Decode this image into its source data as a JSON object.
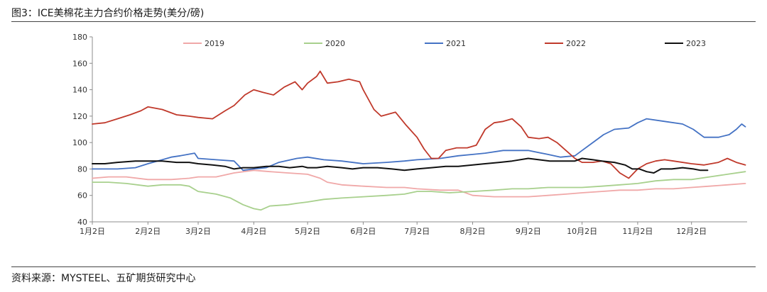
{
  "figure": {
    "title": "图3：ICE美棉花主力合约价格走势(美分/磅)",
    "source": "资料来源：MYSTEEL、五矿期货研究中心"
  },
  "chart_data": {
    "type": "line",
    "xlabel": "",
    "ylabel": "",
    "ylim": [
      40,
      180
    ],
    "yticks": [
      40,
      60,
      80,
      100,
      120,
      140,
      160,
      180
    ],
    "xlim": [
      1,
      366
    ],
    "xticks": [
      {
        "day": 1,
        "label": "1月2日"
      },
      {
        "day": 32,
        "label": "2月2日"
      },
      {
        "day": 60,
        "label": "3月2日"
      },
      {
        "day": 91,
        "label": "4月2日"
      },
      {
        "day": 121,
        "label": "5月2日"
      },
      {
        "day": 152,
        "label": "6月2日"
      },
      {
        "day": 182,
        "label": "7月2日"
      },
      {
        "day": 213,
        "label": "8月2日"
      },
      {
        "day": 244,
        "label": "9月2日"
      },
      {
        "day": 274,
        "label": "10月2日"
      },
      {
        "day": 305,
        "label": "11月2日"
      },
      {
        "day": 335,
        "label": "12月2日"
      }
    ],
    "grid": false,
    "legend_position": "top",
    "series": [
      {
        "name": "2019",
        "color": "#f0a8a8",
        "points": [
          [
            1,
            73
          ],
          [
            10,
            74
          ],
          [
            20,
            74
          ],
          [
            32,
            72
          ],
          [
            45,
            72
          ],
          [
            55,
            73
          ],
          [
            60,
            74
          ],
          [
            70,
            74
          ],
          [
            80,
            77
          ],
          [
            91,
            79
          ],
          [
            100,
            78
          ],
          [
            110,
            77
          ],
          [
            121,
            76
          ],
          [
            128,
            73
          ],
          [
            132,
            70
          ],
          [
            140,
            68
          ],
          [
            152,
            67
          ],
          [
            165,
            66
          ],
          [
            175,
            66
          ],
          [
            182,
            65
          ],
          [
            195,
            64
          ],
          [
            205,
            64
          ],
          [
            213,
            60
          ],
          [
            225,
            59
          ],
          [
            235,
            59
          ],
          [
            244,
            59
          ],
          [
            255,
            60
          ],
          [
            265,
            61
          ],
          [
            274,
            62
          ],
          [
            285,
            63
          ],
          [
            295,
            64
          ],
          [
            305,
            64
          ],
          [
            315,
            65
          ],
          [
            325,
            65
          ],
          [
            335,
            66
          ],
          [
            345,
            67
          ],
          [
            355,
            68
          ],
          [
            365,
            69
          ]
        ]
      },
      {
        "name": "2020",
        "color": "#a8d08d",
        "points": [
          [
            1,
            70
          ],
          [
            10,
            70
          ],
          [
            20,
            69
          ],
          [
            32,
            67
          ],
          [
            40,
            68
          ],
          [
            50,
            68
          ],
          [
            55,
            67
          ],
          [
            60,
            63
          ],
          [
            70,
            61
          ],
          [
            78,
            58
          ],
          [
            85,
            53
          ],
          [
            91,
            50
          ],
          [
            95,
            49
          ],
          [
            100,
            52
          ],
          [
            110,
            53
          ],
          [
            115,
            54
          ],
          [
            121,
            55
          ],
          [
            130,
            57
          ],
          [
            140,
            58
          ],
          [
            152,
            59
          ],
          [
            165,
            60
          ],
          [
            175,
            61
          ],
          [
            182,
            63
          ],
          [
            190,
            63
          ],
          [
            200,
            62
          ],
          [
            213,
            63
          ],
          [
            225,
            64
          ],
          [
            235,
            65
          ],
          [
            244,
            65
          ],
          [
            255,
            66
          ],
          [
            265,
            66
          ],
          [
            274,
            66
          ],
          [
            285,
            67
          ],
          [
            295,
            68
          ],
          [
            305,
            69
          ],
          [
            315,
            71
          ],
          [
            325,
            72
          ],
          [
            335,
            72
          ],
          [
            345,
            74
          ],
          [
            355,
            76
          ],
          [
            365,
            78
          ]
        ]
      },
      {
        "name": "2021",
        "color": "#4472c4",
        "points": [
          [
            1,
            80
          ],
          [
            8,
            80
          ],
          [
            15,
            80
          ],
          [
            25,
            81
          ],
          [
            32,
            84
          ],
          [
            40,
            87
          ],
          [
            45,
            89
          ],
          [
            50,
            90
          ],
          [
            58,
            92
          ],
          [
            60,
            88
          ],
          [
            70,
            87
          ],
          [
            80,
            86
          ],
          [
            85,
            79
          ],
          [
            91,
            80
          ],
          [
            98,
            81
          ],
          [
            105,
            85
          ],
          [
            115,
            88
          ],
          [
            121,
            89
          ],
          [
            130,
            87
          ],
          [
            140,
            86
          ],
          [
            152,
            84
          ],
          [
            165,
            85
          ],
          [
            175,
            86
          ],
          [
            182,
            87
          ],
          [
            195,
            88
          ],
          [
            205,
            90
          ],
          [
            213,
            91
          ],
          [
            220,
            92
          ],
          [
            230,
            94
          ],
          [
            244,
            94
          ],
          [
            255,
            91
          ],
          [
            262,
            89
          ],
          [
            270,
            90
          ],
          [
            274,
            94
          ],
          [
            280,
            100
          ],
          [
            286,
            106
          ],
          [
            292,
            110
          ],
          [
            300,
            111
          ],
          [
            305,
            115
          ],
          [
            310,
            118
          ],
          [
            320,
            116
          ],
          [
            330,
            114
          ],
          [
            336,
            110
          ],
          [
            342,
            104
          ],
          [
            350,
            104
          ],
          [
            356,
            106
          ],
          [
            360,
            110
          ],
          [
            363,
            114
          ],
          [
            365,
            112
          ]
        ]
      },
      {
        "name": "2022",
        "color": "#c0392b",
        "points": [
          [
            1,
            114
          ],
          [
            8,
            115
          ],
          [
            15,
            118
          ],
          [
            22,
            121
          ],
          [
            28,
            124
          ],
          [
            32,
            127
          ],
          [
            40,
            125
          ],
          [
            48,
            121
          ],
          [
            55,
            120
          ],
          [
            60,
            119
          ],
          [
            68,
            118
          ],
          [
            75,
            124
          ],
          [
            80,
            128
          ],
          [
            86,
            136
          ],
          [
            91,
            140
          ],
          [
            96,
            138
          ],
          [
            102,
            136
          ],
          [
            108,
            142
          ],
          [
            114,
            146
          ],
          [
            118,
            140
          ],
          [
            121,
            145
          ],
          [
            126,
            150
          ],
          [
            128,
            154
          ],
          [
            132,
            145
          ],
          [
            138,
            146
          ],
          [
            144,
            148
          ],
          [
            150,
            146
          ],
          [
            152,
            140
          ],
          [
            158,
            125
          ],
          [
            162,
            120
          ],
          [
            170,
            123
          ],
          [
            176,
            113
          ],
          [
            182,
            104
          ],
          [
            186,
            95
          ],
          [
            190,
            88
          ],
          [
            194,
            88
          ],
          [
            198,
            94
          ],
          [
            204,
            96
          ],
          [
            210,
            96
          ],
          [
            215,
            98
          ],
          [
            220,
            110
          ],
          [
            225,
            115
          ],
          [
            230,
            116
          ],
          [
            235,
            118
          ],
          [
            240,
            112
          ],
          [
            244,
            104
          ],
          [
            250,
            103
          ],
          [
            255,
            104
          ],
          [
            260,
            100
          ],
          [
            265,
            94
          ],
          [
            270,
            88
          ],
          [
            274,
            85
          ],
          [
            280,
            85
          ],
          [
            285,
            86
          ],
          [
            290,
            84
          ],
          [
            295,
            77
          ],
          [
            300,
            73
          ],
          [
            305,
            80
          ],
          [
            310,
            84
          ],
          [
            315,
            86
          ],
          [
            320,
            87
          ],
          [
            325,
            86
          ],
          [
            335,
            84
          ],
          [
            342,
            83
          ],
          [
            350,
            85
          ],
          [
            355,
            88
          ],
          [
            360,
            85
          ],
          [
            365,
            83
          ]
        ]
      },
      {
        "name": "2023",
        "color": "#111111",
        "points": [
          [
            1,
            84
          ],
          [
            8,
            84
          ],
          [
            15,
            85
          ],
          [
            25,
            86
          ],
          [
            32,
            86
          ],
          [
            40,
            86
          ],
          [
            48,
            85
          ],
          [
            55,
            85
          ],
          [
            60,
            84
          ],
          [
            68,
            83
          ],
          [
            75,
            82
          ],
          [
            80,
            80
          ],
          [
            85,
            81
          ],
          [
            91,
            81
          ],
          [
            98,
            82
          ],
          [
            105,
            82
          ],
          [
            111,
            81
          ],
          [
            118,
            82
          ],
          [
            121,
            81
          ],
          [
            126,
            81
          ],
          [
            132,
            82
          ],
          [
            140,
            81
          ],
          [
            146,
            80
          ],
          [
            152,
            81
          ],
          [
            160,
            81
          ],
          [
            168,
            80
          ],
          [
            175,
            79
          ],
          [
            182,
            80
          ],
          [
            190,
            81
          ],
          [
            198,
            82
          ],
          [
            205,
            82
          ],
          [
            213,
            83
          ],
          [
            220,
            84
          ],
          [
            228,
            85
          ],
          [
            235,
            86
          ],
          [
            244,
            88
          ],
          [
            250,
            87
          ],
          [
            256,
            86
          ],
          [
            262,
            86
          ],
          [
            270,
            86
          ],
          [
            274,
            88
          ],
          [
            280,
            87
          ],
          [
            285,
            86
          ],
          [
            292,
            85
          ],
          [
            298,
            83
          ],
          [
            302,
            80
          ],
          [
            306,
            80
          ],
          [
            310,
            78
          ],
          [
            314,
            77
          ],
          [
            318,
            80
          ],
          [
            324,
            80
          ],
          [
            330,
            81
          ],
          [
            336,
            80
          ],
          [
            340,
            79
          ],
          [
            344,
            79
          ]
        ]
      }
    ]
  }
}
